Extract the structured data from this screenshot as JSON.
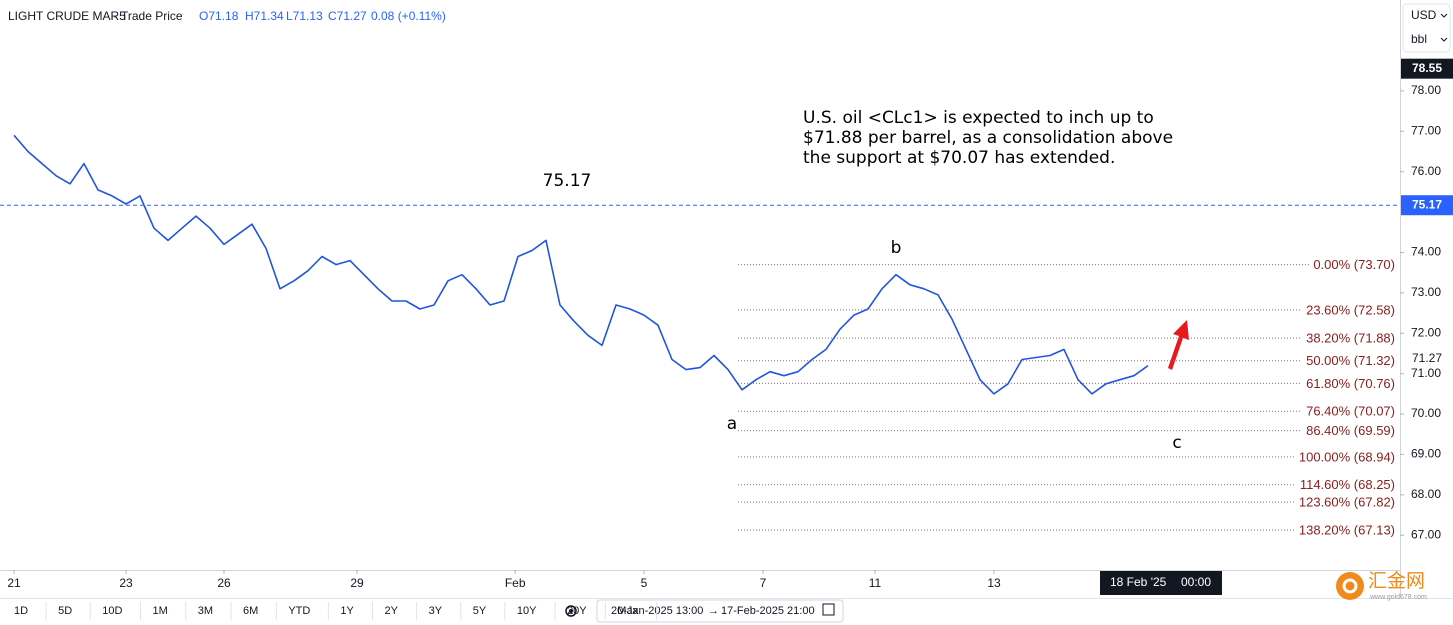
{
  "header": {
    "symbol": "LIGHT CRUDE MAR5",
    "separator": "·",
    "price_type": "Trade Price",
    "ohlc": [
      "O71.18",
      "H71.34",
      "L71.13",
      "C71.27",
      "0.08 (+0.11%)"
    ]
  },
  "currency": {
    "unit": "USD",
    "measure": "bbl"
  },
  "chart_data": {
    "type": "line",
    "color": "#1f55e0",
    "x": [
      1,
      2,
      3,
      4,
      5,
      6,
      7,
      8,
      9,
      10,
      11,
      12,
      13,
      14,
      15,
      16,
      17,
      18,
      19,
      20,
      21,
      22,
      23,
      24,
      25,
      26,
      27,
      28,
      29,
      30,
      31,
      32,
      33,
      34,
      35,
      36,
      37,
      38,
      39,
      40,
      41,
      42,
      43,
      44,
      45,
      46,
      47,
      48,
      49,
      50,
      51,
      52,
      53,
      54,
      55,
      56,
      57,
      58,
      59,
      60,
      61,
      62,
      63,
      64,
      65,
      66,
      67,
      68,
      69,
      70,
      71,
      72,
      73,
      74,
      75,
      76,
      77,
      78,
      79,
      80,
      81,
      82
    ],
    "values": [
      76.9,
      76.5,
      76.2,
      75.9,
      75.7,
      76.2,
      75.55,
      75.4,
      75.2,
      75.4,
      74.6,
      74.3,
      74.6,
      74.9,
      74.6,
      74.2,
      74.45,
      74.7,
      74.1,
      73.1,
      73.3,
      73.55,
      73.9,
      73.7,
      73.8,
      73.45,
      73.1,
      72.8,
      72.8,
      72.6,
      72.7,
      73.3,
      73.45,
      73.1,
      72.7,
      72.8,
      73.9,
      74.05,
      74.3,
      72.7,
      72.3,
      71.95,
      71.7,
      72.7,
      72.6,
      72.45,
      72.2,
      71.35,
      71.1,
      71.15,
      71.45,
      71.1,
      70.6,
      70.85,
      71.05,
      70.95,
      71.05,
      71.35,
      71.6,
      72.1,
      72.45,
      72.6,
      73.1,
      73.45,
      73.2,
      73.1,
      72.95,
      72.35,
      71.6,
      70.85,
      70.5,
      70.75,
      71.35,
      71.4,
      71.45,
      71.6,
      70.85,
      70.5,
      70.75,
      70.85,
      70.95,
      71.2
    ],
    "xlim": [
      0,
      100
    ],
    "xticks": [
      {
        "value": 1,
        "label": "21"
      },
      {
        "value": 9,
        "label": "23"
      },
      {
        "value": 16,
        "label": "26"
      },
      {
        "value": 25.5,
        "label": "29"
      },
      {
        "value": 36.8,
        "label": "Feb"
      },
      {
        "value": 46,
        "label": "5"
      },
      {
        "value": 54.5,
        "label": "7"
      },
      {
        "value": 62.5,
        "label": "11"
      },
      {
        "value": 71,
        "label": "13"
      }
    ],
    "ylim": [
      66.14,
      80.25
    ],
    "yticks": [
      {
        "value": 67,
        "label": "67.00"
      },
      {
        "value": 68,
        "label": "68.00"
      },
      {
        "value": 69,
        "label": "69.00"
      },
      {
        "value": 70,
        "label": "70.00"
      },
      {
        "value": 71,
        "label": "71.00"
      },
      {
        "value": 72,
        "label": "72.00"
      },
      {
        "value": 73,
        "label": "73.00"
      },
      {
        "value": 74,
        "label": "74.00"
      },
      {
        "value": 76,
        "label": "76.00"
      },
      {
        "value": 77,
        "label": "77.00"
      },
      {
        "value": 78,
        "label": "78.00"
      }
    ],
    "high_marker": 78.55,
    "resistance_level": 75.17,
    "last_price": 71.27,
    "fib_levels": [
      {
        "value": 73.7,
        "label": "0.00% (73.70)"
      },
      {
        "value": 72.58,
        "label": "23.60% (72.58)"
      },
      {
        "value": 71.88,
        "label": "38.20% (71.88)"
      },
      {
        "value": 71.32,
        "label": "50.00% (71.32)"
      },
      {
        "value": 70.76,
        "label": "61.80% (70.76)"
      },
      {
        "value": 70.07,
        "label": "76.40% (70.07)"
      },
      {
        "value": 69.59,
        "label": "86.40% (69.59)"
      },
      {
        "value": 68.94,
        "label": "100.00% (68.94)"
      },
      {
        "value": 68.25,
        "label": "114.60% (68.25)"
      },
      {
        "value": 67.82,
        "label": "123.60% (67.82)"
      },
      {
        "value": 67.13,
        "label": "138.20% (67.13)"
      }
    ],
    "wave_labels": [
      "a",
      "b",
      "c"
    ],
    "comment_lines": [
      "U.S. oil <CLc1> is expected to inch up to",
      "$71.88 per barrel, as a consolidation above",
      "the support at $70.07 has extended."
    ],
    "crosshair": {
      "date": "18 Feb '25",
      "time": "00:00"
    }
  },
  "toolbar": {
    "ranges": [
      "1D",
      "5D",
      "10D",
      "1M",
      "3M",
      "6M",
      "YTD",
      "1Y",
      "2Y",
      "3Y",
      "5Y",
      "10Y",
      "20Y",
      "Max"
    ],
    "date_from": "20-Jan-2025 13:00",
    "arrow": "→",
    "date_to": "17-Feb-2025 21:00"
  },
  "watermark": {
    "name": "汇金网",
    "url": "www.gold678.com"
  }
}
